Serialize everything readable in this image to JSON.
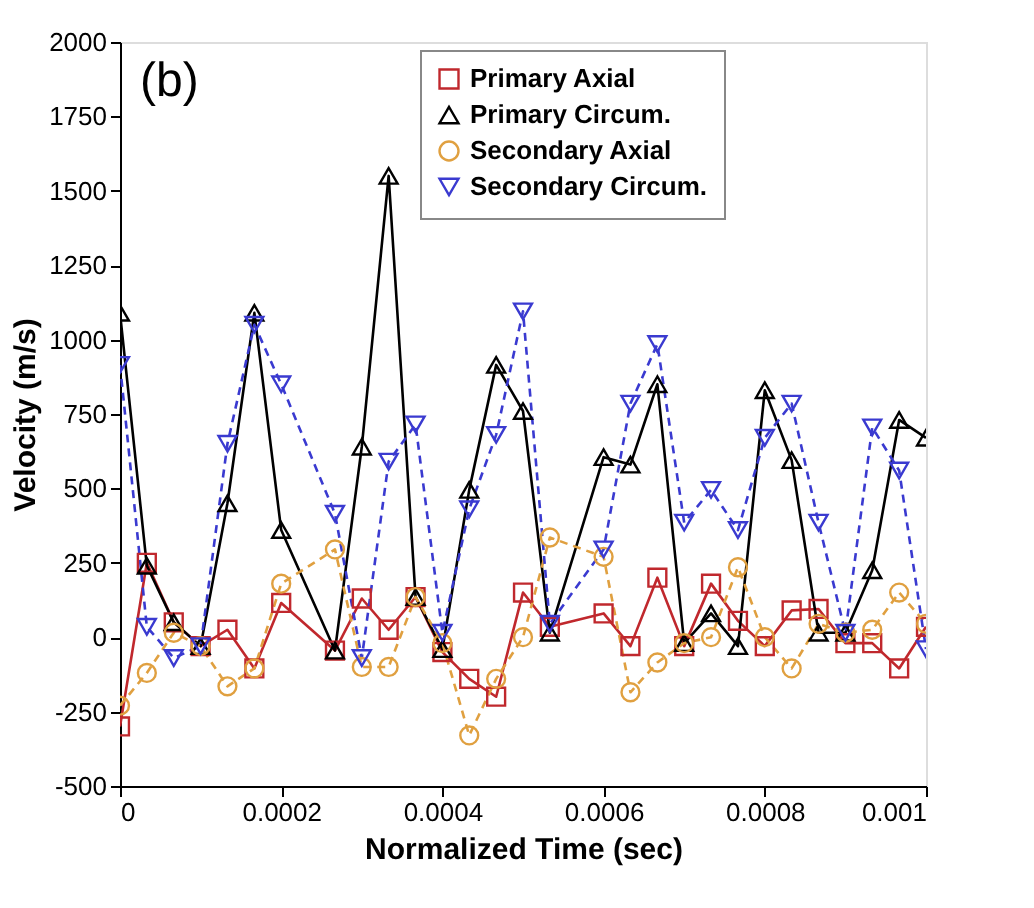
{
  "chart_data": {
    "type": "line",
    "xlabel": "Normalized Time (sec)",
    "ylabel": "Velocity (m/s)",
    "annotations": [
      "(b)"
    ],
    "x": [
      0,
      3.33e-05,
      6.67e-05,
      0.0001,
      0.0001333,
      0.0001667,
      0.0002,
      0.0002667,
      0.0003,
      0.0003333,
      0.0003667,
      0.0004,
      0.0004333,
      0.0004667,
      0.0005,
      0.0005333,
      0.0006,
      0.0006333,
      0.0006667,
      0.0007,
      0.0007333,
      0.0007667,
      0.0008,
      0.0008333,
      0.0008667,
      0.0009,
      0.0009333,
      0.0009667,
      0.001
    ],
    "series": [
      {
        "name": "Primary Axial",
        "color": "#c0282d",
        "marker": "square",
        "line_style": "solid",
        "values": [
          -300,
          250,
          50,
          -30,
          25,
          -105,
          115,
          -45,
          130,
          25,
          135,
          -50,
          -140,
          -200,
          150,
          35,
          80,
          -30,
          200,
          -30,
          180,
          55,
          -30,
          90,
          95,
          -20,
          -20,
          -105,
          35
        ]
      },
      {
        "name": "Primary Circum.",
        "color": "#000000",
        "marker": "triangle",
        "line_style": "solid",
        "values": [
          1090,
          240,
          50,
          -30,
          450,
          1090,
          360,
          -45,
          640,
          1550,
          135,
          -40,
          495,
          915,
          760,
          15,
          605,
          580,
          850,
          -20,
          80,
          -30,
          830,
          595,
          15,
          15,
          225,
          730,
          670
        ]
      },
      {
        "name": "Secondary Axial",
        "color": "#e0a040",
        "marker": "circle",
        "line_style": "dashed",
        "values": [
          -230,
          -120,
          15,
          -30,
          -165,
          -105,
          180,
          295,
          -100,
          -100,
          135,
          -20,
          -330,
          -140,
          0,
          335,
          270,
          -185,
          -85,
          -20,
          0,
          235,
          0,
          -105,
          45,
          15,
          25,
          150,
          45
        ]
      },
      {
        "name": "Secondary Circum.",
        "color": "#3a3ad0",
        "marker": "triangle-down",
        "line_style": "dashed",
        "values": [
          915,
          35,
          -70,
          -30,
          650,
          1050,
          850,
          415,
          -70,
          590,
          715,
          15,
          430,
          680,
          1095,
          45,
          295,
          785,
          985,
          385,
          495,
          360,
          670,
          785,
          385,
          15,
          705,
          560,
          -40
        ]
      }
    ],
    "xlim": [
      0,
      0.001
    ],
    "xticks": [
      0,
      0.0002,
      0.0004,
      0.0006,
      0.0008,
      0.001
    ],
    "ylim": [
      -500,
      2000
    ],
    "yticks": [
      -500,
      -250,
      0,
      250,
      500,
      750,
      1000,
      1250,
      1500,
      1750,
      2000
    ],
    "grid": false,
    "legend": "top right"
  }
}
